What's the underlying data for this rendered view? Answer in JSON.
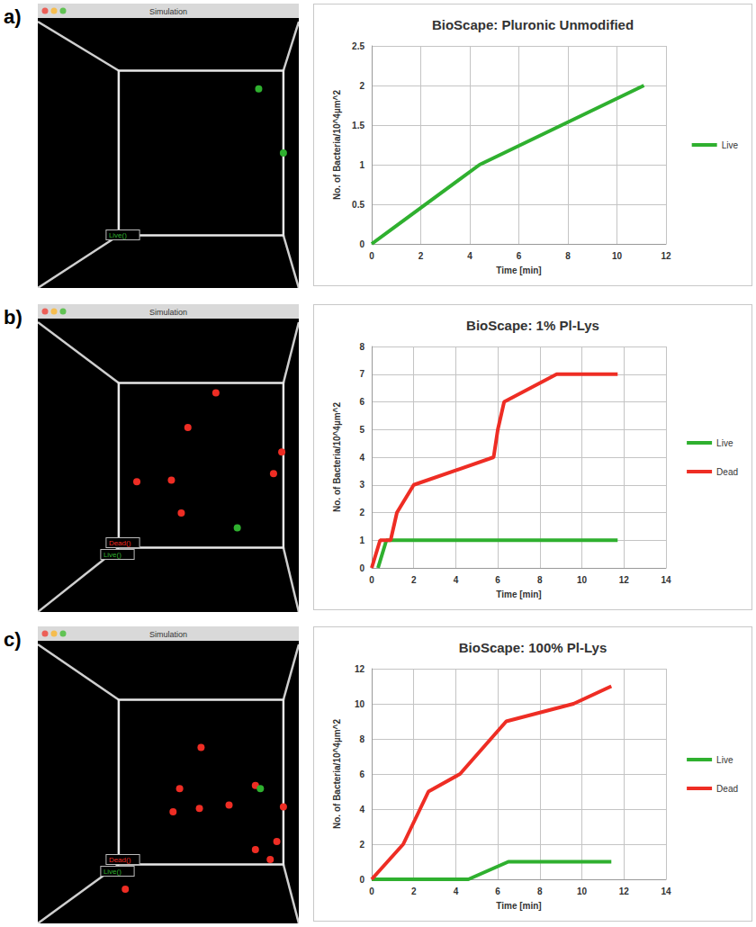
{
  "chart_data": [
    {
      "type": "line",
      "title": "BioScape: Pluronic Unmodified",
      "x_label": "Time [min]",
      "y_label": "No. of Bacteria/10^4µm^2",
      "xlim": [
        0,
        12
      ],
      "xticks": [
        0,
        2,
        4,
        6,
        8,
        10,
        12
      ],
      "ylim": [
        0,
        2.5
      ],
      "yticks": [
        0,
        0.5,
        1,
        1.5,
        2,
        2.5
      ],
      "grid": true,
      "legend": "right",
      "series": [
        {
          "name": "Live",
          "color": "#2fb02f",
          "x": [
            0,
            4.4,
            11.1
          ],
          "values": [
            0,
            1,
            2
          ]
        }
      ]
    },
    {
      "type": "line",
      "title": "BioScape: 1% Pl-Lys",
      "x_label": "Time [min]",
      "y_label": "No. of Bacteria/10^4µm^2",
      "xlim": [
        0,
        14
      ],
      "xticks": [
        0,
        2,
        4,
        6,
        8,
        10,
        12,
        14
      ],
      "ylim": [
        0,
        8
      ],
      "yticks": [
        0,
        1,
        2,
        3,
        4,
        5,
        6,
        7,
        8
      ],
      "grid": true,
      "legend": "right",
      "series": [
        {
          "name": "Live",
          "color": "#2fb02f",
          "x": [
            0.3,
            0.7,
            11.7
          ],
          "values": [
            0,
            1,
            1
          ]
        },
        {
          "name": "Dead",
          "color": "#ee2d24",
          "x": [
            0,
            0.4,
            0.9,
            1.2,
            2,
            5.8,
            6.0,
            6.3,
            8.8,
            11.7
          ],
          "values": [
            0,
            1,
            1,
            2,
            3,
            4,
            5,
            6,
            7,
            7
          ]
        }
      ]
    },
    {
      "type": "line",
      "title": "BioScape: 100% Pl-Lys",
      "x_label": "Time [min]",
      "y_label": "No. of Bacteria/10^4µm^2",
      "xlim": [
        0,
        14
      ],
      "xticks": [
        0,
        2,
        4,
        6,
        8,
        10,
        12,
        14
      ],
      "ylim": [
        0,
        12
      ],
      "yticks": [
        0,
        2,
        4,
        6,
        8,
        10,
        12
      ],
      "grid": true,
      "legend": "right",
      "series": [
        {
          "name": "Live",
          "color": "#2fb02f",
          "x": [
            0,
            4.6,
            6.5,
            11.4
          ],
          "values": [
            0,
            0,
            1,
            1
          ]
        },
        {
          "name": "Dead",
          "color": "#ee2d24",
          "x": [
            0,
            1.5,
            2.7,
            4.2,
            6.4,
            9.6,
            11.4
          ],
          "values": [
            0,
            2,
            5,
            6,
            9,
            10,
            11
          ]
        }
      ]
    }
  ],
  "panels": [
    {
      "letter": "a)",
      "screenshot": {
        "window_title": "Simulation",
        "labels": [
          {
            "text": "Live()",
            "color": "#2fb02f"
          }
        ],
        "dots": [
          {
            "color": "#2fb02f",
            "x": 0.85,
            "y": 0.11
          },
          {
            "color": "#2fb02f",
            "x": 1.0,
            "y": 0.5
          }
        ]
      }
    },
    {
      "letter": "b)",
      "screenshot": {
        "window_title": "Simulation",
        "labels": [
          {
            "text": "Dead()",
            "color": "#ee2d24"
          },
          {
            "text": "Live()",
            "color": "#2fb02f"
          }
        ],
        "dots": [
          {
            "color": "#ee2d24",
            "x": 0.59,
            "y": 0.06
          },
          {
            "color": "#ee2d24",
            "x": 0.42,
            "y": 0.27
          },
          {
            "color": "#ee2d24",
            "x": 0.11,
            "y": 0.6
          },
          {
            "color": "#ee2d24",
            "x": 0.32,
            "y": 0.59
          },
          {
            "color": "#ee2d24",
            "x": 0.38,
            "y": 0.79
          },
          {
            "color": "#ee2d24",
            "x": 0.99,
            "y": 0.42
          },
          {
            "color": "#ee2d24",
            "x": 0.94,
            "y": 0.55
          },
          {
            "color": "#2fb02f",
            "x": 0.72,
            "y": 0.88
          }
        ]
      }
    },
    {
      "letter": "c)",
      "screenshot": {
        "window_title": "Simulation",
        "labels": [
          {
            "text": "Dead()",
            "color": "#ee2d24"
          },
          {
            "text": "Live()",
            "color": "#2fb02f"
          }
        ],
        "dots": [
          {
            "color": "#ee2d24",
            "x": 0.5,
            "y": 0.29
          },
          {
            "color": "#ee2d24",
            "x": 0.37,
            "y": 0.54
          },
          {
            "color": "#ee2d24",
            "x": 0.33,
            "y": 0.68
          },
          {
            "color": "#ee2d24",
            "x": 0.49,
            "y": 0.66
          },
          {
            "color": "#ee2d24",
            "x": 0.67,
            "y": 0.64
          },
          {
            "color": "#ee2d24",
            "x": 0.83,
            "y": 0.52
          },
          {
            "color": "#ee2d24",
            "x": 1.0,
            "y": 0.65
          },
          {
            "color": "#ee2d24",
            "x": 0.83,
            "y": 0.91
          },
          {
            "color": "#ee2d24",
            "x": 0.96,
            "y": 0.86
          },
          {
            "color": "#ee2d24",
            "x": 0.92,
            "y": 0.97
          },
          {
            "color": "#ee2d24",
            "x": 0.04,
            "y": 1.15
          },
          {
            "color": "#2fb02f",
            "x": 0.86,
            "y": 0.54
          }
        ]
      }
    }
  ]
}
